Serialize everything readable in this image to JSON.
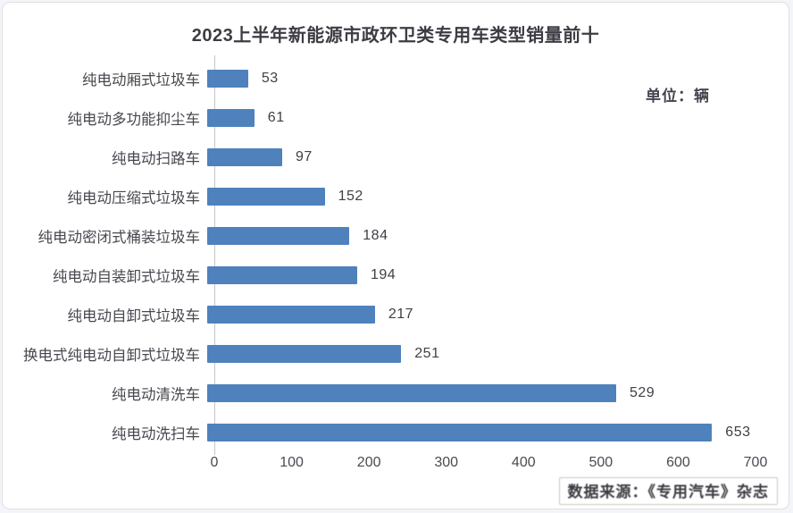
{
  "header": {
    "title": "2023上半年新能源市政环卫类专用车类型销量前十",
    "unit_label": "单位：辆"
  },
  "chart_data": {
    "type": "bar",
    "orientation": "horizontal",
    "title": "2023上半年新能源市政环卫类专用车类型销量前十",
    "unit": "辆",
    "categories": [
      "纯电动厢式垃圾车",
      "纯电动多功能抑尘车",
      "纯电动扫路车",
      "纯电动压缩式垃圾车",
      "纯电动密闭式桶装垃圾车",
      "纯电动自装卸式垃圾车",
      "纯电动自卸式垃圾车",
      "换电式纯电动自卸式垃圾车",
      "纯电动清洗车",
      "纯电动洗扫车"
    ],
    "values": [
      53,
      61,
      97,
      152,
      184,
      194,
      217,
      251,
      529,
      653
    ],
    "xlim": [
      0,
      700
    ],
    "x_ticks": [
      0,
      100,
      200,
      300,
      400,
      500,
      600,
      700
    ],
    "grid": false,
    "value_labels": true,
    "bar_color": "#4f81bd",
    "legend": "none"
  },
  "footer": {
    "source_label": "数据来源：《专用汽车》杂志"
  }
}
